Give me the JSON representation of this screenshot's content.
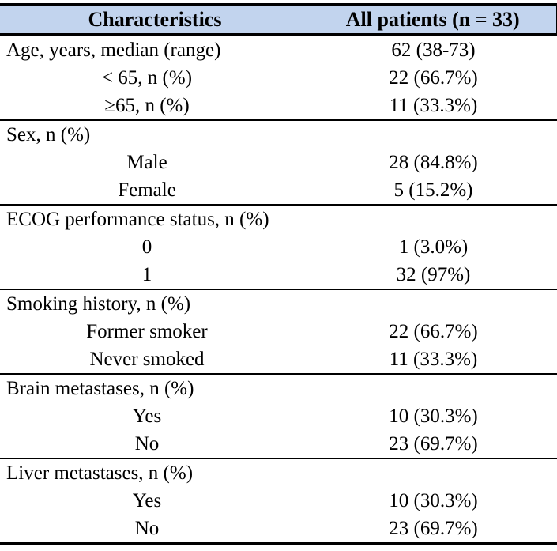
{
  "table": {
    "title_semantic": "Patient baseline characteristics",
    "header_bg": "#c2d4ee",
    "border_color": "#000000",
    "header": {
      "characteristics": "Characteristics",
      "all_patients": "All patients (n = 33)"
    },
    "rows": [
      {
        "type": "section",
        "separator": false,
        "label": "Age, years, median (range)",
        "value": "62 (38-73)"
      },
      {
        "type": "sub",
        "separator": false,
        "label": "< 65, n (%)",
        "value": "22 (66.7%)"
      },
      {
        "type": "sub",
        "separator": false,
        "label": "≥65, n (%)",
        "value": "11 (33.3%)"
      },
      {
        "type": "section",
        "separator": true,
        "label": "Sex, n (%)",
        "value": ""
      },
      {
        "type": "sub",
        "separator": false,
        "label": "Male",
        "value": "28 (84.8%)"
      },
      {
        "type": "sub",
        "separator": false,
        "label": "Female",
        "value": "5 (15.2%)"
      },
      {
        "type": "section",
        "separator": true,
        "label": "ECOG performance status, n (%)",
        "value": ""
      },
      {
        "type": "sub",
        "separator": false,
        "label": "0",
        "value": "1 (3.0%)"
      },
      {
        "type": "sub",
        "separator": false,
        "label": "1",
        "value": "32 (97%)"
      },
      {
        "type": "section",
        "separator": true,
        "label": "Smoking history, n (%)",
        "value": ""
      },
      {
        "type": "sub",
        "separator": false,
        "label": "Former smoker",
        "value": "22 (66.7%)"
      },
      {
        "type": "sub",
        "separator": false,
        "label": "Never smoked",
        "value": "11 (33.3%)"
      },
      {
        "type": "section",
        "separator": true,
        "label": "Brain metastases, n (%)",
        "value": ""
      },
      {
        "type": "sub",
        "separator": false,
        "label": "Yes",
        "value": "10 (30.3%)"
      },
      {
        "type": "sub",
        "separator": false,
        "label": "No",
        "value": "23 (69.7%)"
      },
      {
        "type": "section",
        "separator": true,
        "label": "Liver metastases, n (%)",
        "value": ""
      },
      {
        "type": "sub",
        "separator": false,
        "label": "Yes",
        "value": "10 (30.3%)"
      },
      {
        "type": "sub",
        "separator": false,
        "label": "No",
        "value": "23 (69.7%)"
      }
    ]
  }
}
